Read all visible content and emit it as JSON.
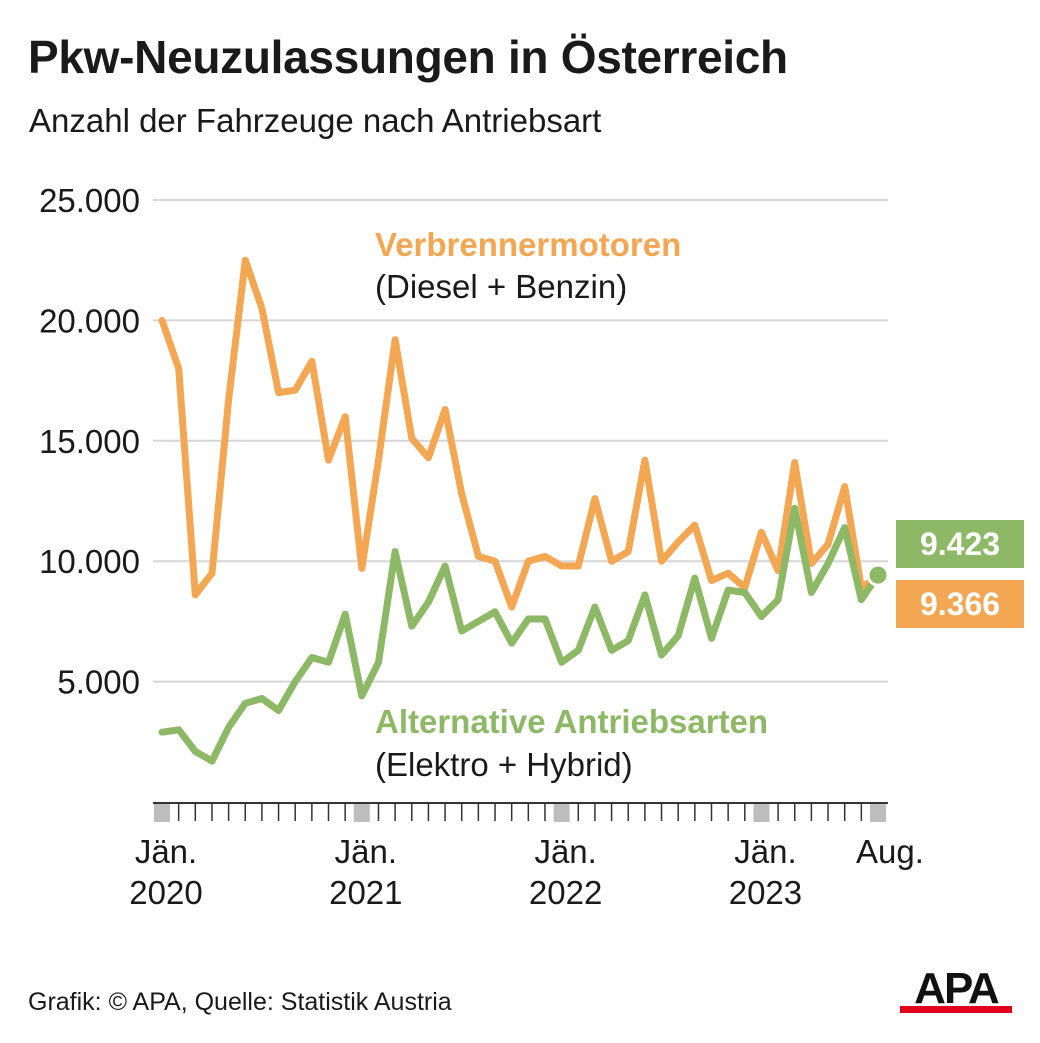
{
  "title": "Pkw-Neuzulassungen in Österreich",
  "subtitle": "Anzahl der Fahrzeuge nach Antriebsart",
  "source": "Grafik: © APA, Quelle: Statistik Austria",
  "logo_text": "APA",
  "colors": {
    "verbrenner": "#F4A753",
    "alternative": "#8DB865",
    "grid": "#d6d6d6",
    "text": "#1a1a1a",
    "tick_box": "#bdbdbd"
  },
  "chart_data": {
    "type": "line",
    "x_start": "2020-01",
    "x_end": "2023-08",
    "ylim": [
      0,
      25000
    ],
    "y_ticks": [
      {
        "value": 5000,
        "label": "5.000"
      },
      {
        "value": 10000,
        "label": "10.000"
      },
      {
        "value": 15000,
        "label": "15.000"
      },
      {
        "value": 20000,
        "label": "20.000"
      },
      {
        "value": 25000,
        "label": "25.000"
      }
    ],
    "x_tick_labels": [
      {
        "month_index": 0,
        "line1": "Jän.",
        "line2": "2020"
      },
      {
        "month_index": 12,
        "line1": "Jän.",
        "line2": "2021"
      },
      {
        "month_index": 24,
        "line1": "Jän.",
        "line2": "2022"
      },
      {
        "month_index": 36,
        "line1": "Jän.",
        "line2": "2023"
      },
      {
        "month_index": 43,
        "line1": "Aug.",
        "line2": ""
      }
    ],
    "series": [
      {
        "name": "Verbrennermotoren",
        "name_sub": "(Diesel + Benzin)",
        "color": "#F4A753",
        "values": [
          20000,
          18000,
          8600,
          9500,
          16700,
          22500,
          20500,
          17000,
          17100,
          18300,
          14200,
          16000,
          9700,
          14200,
          19200,
          15100,
          14300,
          16300,
          12800,
          10200,
          10000,
          8100,
          10000,
          10200,
          9800,
          9800,
          12600,
          10000,
          10400,
          14200,
          10000,
          10800,
          11500,
          9200,
          9500,
          8900,
          11200,
          9600,
          14100,
          9900,
          10700,
          13100,
          8900,
          9366
        ],
        "end_label": "9.366"
      },
      {
        "name": "Alternative Antriebsarten",
        "name_sub": "(Elektro + Hybrid)",
        "color": "#8DB865",
        "values": [
          2900,
          3000,
          2100,
          1700,
          3100,
          4100,
          4300,
          3800,
          5000,
          6000,
          5800,
          7800,
          4400,
          5800,
          10400,
          7300,
          8300,
          9800,
          7100,
          7500,
          7900,
          6600,
          7600,
          7600,
          5800,
          6300,
          8100,
          6300,
          6700,
          8600,
          6100,
          6900,
          9300,
          6800,
          8800,
          8700,
          7700,
          8400,
          12200,
          8700,
          9900,
          11400,
          8400,
          9423
        ],
        "end_label": "9.423"
      }
    ]
  }
}
